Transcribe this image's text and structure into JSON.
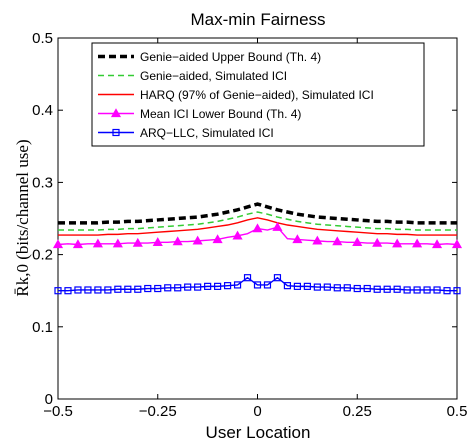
{
  "chart_data": {
    "type": "line",
    "title": "Max-min Fairness",
    "xlabel": "User Location",
    "ylabel": "R̄k,0 (bits/channel use)",
    "xlim": [
      -0.5,
      0.5
    ],
    "ylim": [
      0,
      0.5
    ],
    "xticks": [
      -0.5,
      -0.25,
      0,
      0.25,
      0.5
    ],
    "xtick_labels": [
      "−0.5",
      "−0.25",
      "0",
      "0.25",
      "0.5"
    ],
    "yticks": [
      0,
      0.1,
      0.2,
      0.3,
      0.4,
      0.5
    ],
    "ytick_labels": [
      "0",
      "0.1",
      "0.2",
      "0.3",
      "0.4",
      "0.5"
    ],
    "grid": false,
    "legend_position": "top",
    "x": [
      -0.5,
      -0.475,
      -0.45,
      -0.425,
      -0.4,
      -0.375,
      -0.35,
      -0.325,
      -0.3,
      -0.275,
      -0.25,
      -0.225,
      -0.2,
      -0.175,
      -0.15,
      -0.125,
      -0.1,
      -0.075,
      -0.05,
      -0.025,
      0,
      0.025,
      0.05,
      0.075,
      0.1,
      0.125,
      0.15,
      0.175,
      0.2,
      0.225,
      0.25,
      0.275,
      0.3,
      0.325,
      0.35,
      0.375,
      0.4,
      0.425,
      0.45,
      0.475,
      0.5
    ],
    "series": [
      {
        "name": "Genie−aided Upper Bound (Th. 4)",
        "color": "#000000",
        "style": "thick-dashed",
        "values": [
          0.244,
          0.244,
          0.244,
          0.244,
          0.244,
          0.245,
          0.245,
          0.246,
          0.246,
          0.247,
          0.248,
          0.249,
          0.25,
          0.251,
          0.252,
          0.254,
          0.256,
          0.259,
          0.262,
          0.266,
          0.27,
          0.266,
          0.262,
          0.259,
          0.256,
          0.254,
          0.252,
          0.251,
          0.25,
          0.249,
          0.248,
          0.247,
          0.246,
          0.246,
          0.245,
          0.245,
          0.244,
          0.244,
          0.244,
          0.244,
          0.244
        ]
      },
      {
        "name": "Genie−aided, Simulated ICI",
        "color": "#33cc33",
        "style": "dashed",
        "values": [
          0.234,
          0.234,
          0.234,
          0.234,
          0.234,
          0.235,
          0.235,
          0.236,
          0.236,
          0.237,
          0.238,
          0.239,
          0.24,
          0.241,
          0.242,
          0.244,
          0.246,
          0.249,
          0.252,
          0.256,
          0.259,
          0.256,
          0.252,
          0.249,
          0.246,
          0.244,
          0.242,
          0.241,
          0.24,
          0.239,
          0.238,
          0.237,
          0.236,
          0.236,
          0.235,
          0.235,
          0.234,
          0.234,
          0.234,
          0.234,
          0.234
        ]
      },
      {
        "name": "HARQ (97% of Genie−aided), Simulated ICI",
        "color": "#ff0000",
        "style": "solid",
        "values": [
          0.227,
          0.227,
          0.227,
          0.227,
          0.227,
          0.228,
          0.228,
          0.229,
          0.229,
          0.23,
          0.231,
          0.232,
          0.233,
          0.234,
          0.235,
          0.237,
          0.239,
          0.241,
          0.244,
          0.248,
          0.251,
          0.248,
          0.244,
          0.241,
          0.239,
          0.237,
          0.235,
          0.234,
          0.233,
          0.232,
          0.231,
          0.23,
          0.229,
          0.229,
          0.228,
          0.228,
          0.227,
          0.227,
          0.227,
          0.227,
          0.227
        ]
      },
      {
        "name": "Mean ICI Lower Bound (Th. 4)",
        "color": "#ff00ff",
        "style": "solid-triangle",
        "values": [
          0.214,
          0.215,
          0.214,
          0.215,
          0.215,
          0.215,
          0.215,
          0.216,
          0.216,
          0.216,
          0.217,
          0.217,
          0.218,
          0.218,
          0.219,
          0.22,
          0.221,
          0.224,
          0.226,
          0.229,
          0.236,
          0.234,
          0.238,
          0.222,
          0.221,
          0.22,
          0.219,
          0.218,
          0.218,
          0.217,
          0.217,
          0.216,
          0.216,
          0.216,
          0.215,
          0.215,
          0.215,
          0.215,
          0.214,
          0.215,
          0.214
        ]
      },
      {
        "name": "ARQ−LLC, Simulated ICI",
        "color": "#0000ff",
        "style": "solid-square",
        "values": [
          0.15,
          0.15,
          0.151,
          0.151,
          0.151,
          0.151,
          0.152,
          0.152,
          0.152,
          0.153,
          0.153,
          0.154,
          0.154,
          0.155,
          0.155,
          0.156,
          0.156,
          0.157,
          0.158,
          0.168,
          0.158,
          0.158,
          0.168,
          0.157,
          0.156,
          0.156,
          0.155,
          0.155,
          0.154,
          0.154,
          0.153,
          0.153,
          0.152,
          0.152,
          0.152,
          0.151,
          0.151,
          0.151,
          0.151,
          0.15,
          0.15
        ]
      }
    ]
  }
}
